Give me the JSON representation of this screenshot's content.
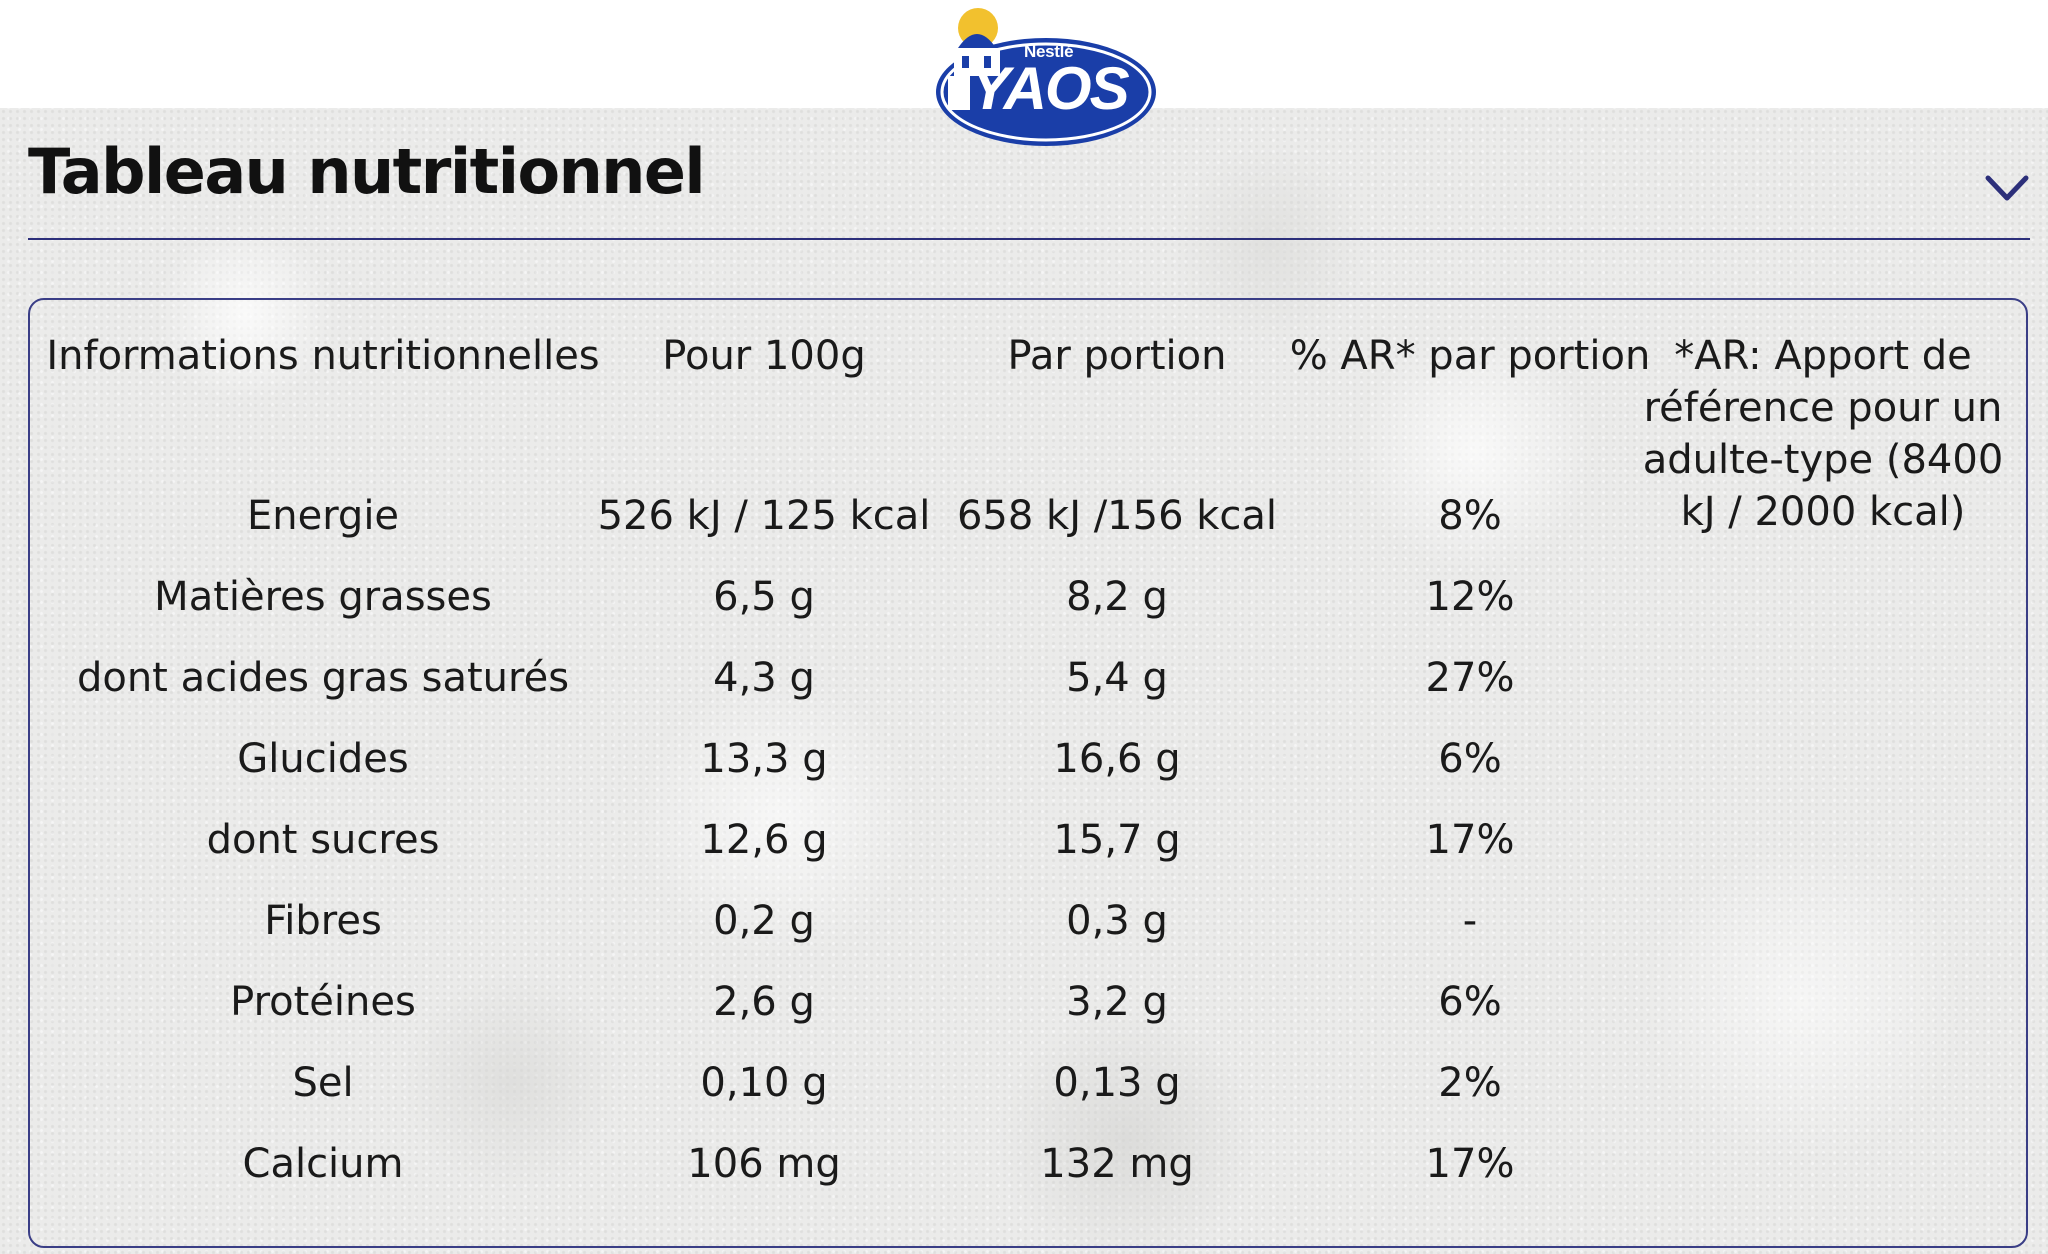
{
  "brand": {
    "maker": "Nestlé",
    "name": "YAOS",
    "colors": {
      "blue": "#1a3ea8",
      "sun": "#f2c12e",
      "white": "#ffffff"
    }
  },
  "section": {
    "title": "Tableau nutritionnel",
    "toggle_icon": "chevron-down-icon",
    "accent_color": "#2c2f7a"
  },
  "table": {
    "headers": [
      "Informations nutritionnelles",
      "Pour 100g",
      "Par portion",
      "% AR* par portion"
    ],
    "note": "*AR: Apport de référence pour un adulte-type (8400 kJ / 2000 kcal)",
    "rows": [
      {
        "name": "Energie",
        "per100": "526 kJ / 125 kcal",
        "portion": "658 kJ /156 kcal",
        "ar": "8%"
      },
      {
        "name": "Matières grasses",
        "per100": "6,5 g",
        "portion": "8,2 g",
        "ar": "12%"
      },
      {
        "name": "dont acides gras saturés",
        "per100": "4,3 g",
        "portion": "5,4 g",
        "ar": "27%"
      },
      {
        "name": "Glucides",
        "per100": "13,3 g",
        "portion": "16,6 g",
        "ar": "6%"
      },
      {
        "name": "dont sucres",
        "per100": "12,6 g",
        "portion": "15,7 g",
        "ar": "17%"
      },
      {
        "name": "Fibres",
        "per100": "0,2 g",
        "portion": "0,3 g",
        "ar": "-"
      },
      {
        "name": "Protéines",
        "per100": "2,6 g",
        "portion": "3,2 g",
        "ar": "6%"
      },
      {
        "name": "Sel",
        "per100": "0,10 g",
        "portion": "0,13 g",
        "ar": "2%"
      },
      {
        "name": "Calcium",
        "per100": "106 mg",
        "portion": "132 mg",
        "ar": "17%"
      }
    ]
  }
}
